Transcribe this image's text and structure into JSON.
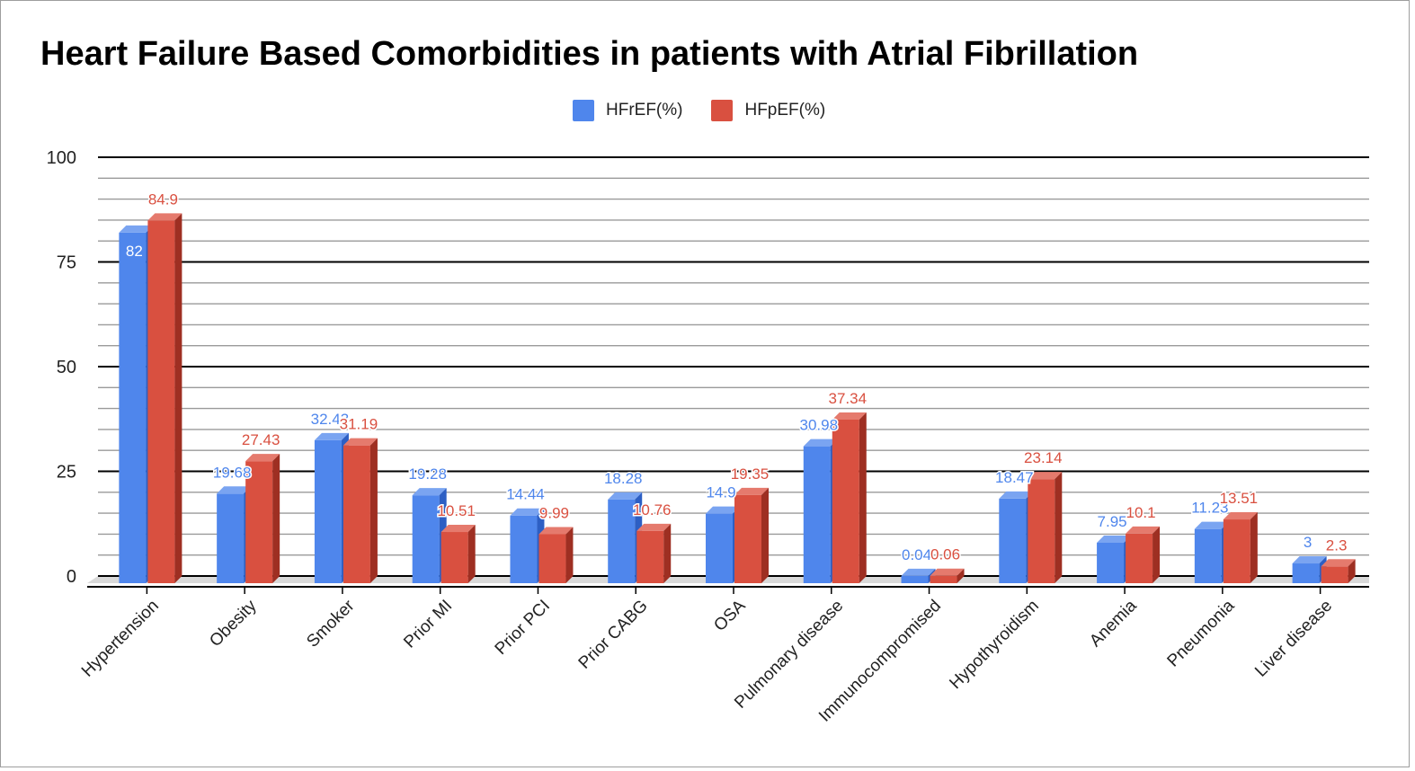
{
  "chart_data": {
    "type": "bar",
    "title": "Heart Failure Based Comorbidities in patients with Atrial Fibrillation",
    "xlabel": "",
    "ylabel": "",
    "ylim": [
      0,
      100
    ],
    "yticks": [
      "0",
      "25",
      "50",
      "75",
      "100"
    ],
    "categories": [
      "Hypertension",
      "Obesity",
      "Smoker",
      "Prior MI",
      "Prior PCI",
      "Prior CABG",
      "OSA",
      "Pulmonary disease",
      "Immunocompromised",
      "Hypothyroidism",
      "Anemia",
      "Pneumonia",
      "Liver disease"
    ],
    "series": [
      {
        "name": "HFrEF(%)",
        "color": "#4f86ec",
        "sideColor": "#2d5fc4",
        "topColor": "#7aa4f1",
        "labelColor": "#4f86ec",
        "values": [
          82,
          19.68,
          32.43,
          19.28,
          14.44,
          18.28,
          14.9,
          30.98,
          0.04,
          18.47,
          7.95,
          11.23,
          3
        ],
        "labels": [
          "82",
          "19.68",
          "32.43",
          "19.28",
          "14.44",
          "18.28",
          "14.9",
          "30.98",
          "0.04",
          "18.47",
          "7.95",
          "11.23",
          "3"
        ]
      },
      {
        "name": "HFpEF(%)",
        "color": "#d95040",
        "sideColor": "#9e2f22",
        "topColor": "#e57a6d",
        "labelColor": "#d95040",
        "values": [
          84.9,
          27.43,
          31.19,
          10.51,
          9.99,
          10.76,
          19.35,
          37.34,
          0.06,
          23.14,
          10.1,
          13.51,
          2.3
        ],
        "labels": [
          "84.9",
          "27.43",
          "31.19",
          "10.51",
          "9.99",
          "10.76",
          "19.35",
          "37.34",
          "0.06",
          "23.14",
          "10.1",
          "13.51",
          "2.3"
        ]
      }
    ],
    "legend_position": "top-center",
    "grid": true
  }
}
